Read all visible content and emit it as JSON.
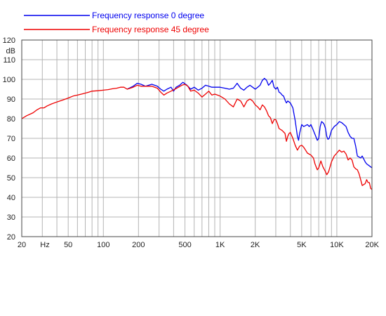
{
  "chart_data": {
    "type": "line",
    "xscale": "log",
    "xlim": [
      20,
      20000
    ],
    "ylim": [
      20,
      120
    ],
    "ylabel": "dB",
    "grid": true,
    "legend_position": "top-left",
    "x_tick_labels": [
      {
        "value": 20,
        "label": "20"
      },
      {
        "value": 50,
        "label": "50"
      },
      {
        "value": 100,
        "label": "100"
      },
      {
        "value": 200,
        "label": "200"
      },
      {
        "value": 500,
        "label": "500"
      },
      {
        "value": 1000,
        "label": "1K"
      },
      {
        "value": 2000,
        "label": "2K"
      },
      {
        "value": 5000,
        "label": "5K"
      },
      {
        "value": 10000,
        "label": "10K"
      },
      {
        "value": 20000,
        "label": "20K"
      }
    ],
    "x_unit_label": "Hz",
    "y_ticks": [
      20,
      30,
      40,
      50,
      60,
      70,
      80,
      90,
      100,
      110,
      120
    ],
    "series": [
      {
        "name": "Frequency response 0 degree",
        "color": "#0000ee",
        "points": [
          [
            160,
            95
          ],
          [
            180,
            96.5
          ],
          [
            195,
            98
          ],
          [
            210,
            97.5
          ],
          [
            230,
            96.5
          ],
          [
            260,
            97.5
          ],
          [
            290,
            96.5
          ],
          [
            310,
            95
          ],
          [
            330,
            94
          ],
          [
            350,
            95
          ],
          [
            380,
            96
          ],
          [
            400,
            94
          ],
          [
            420,
            96
          ],
          [
            450,
            97
          ],
          [
            480,
            98.5
          ],
          [
            520,
            97
          ],
          [
            560,
            95
          ],
          [
            600,
            96
          ],
          [
            650,
            94.5
          ],
          [
            700,
            95.5
          ],
          [
            750,
            97
          ],
          [
            800,
            96.5
          ],
          [
            850,
            96
          ],
          [
            900,
            96
          ],
          [
            1000,
            96
          ],
          [
            1100,
            95.5
          ],
          [
            1200,
            95
          ],
          [
            1300,
            95.5
          ],
          [
            1400,
            98
          ],
          [
            1500,
            95.5
          ],
          [
            1600,
            94.5
          ],
          [
            1700,
            96
          ],
          [
            1800,
            97
          ],
          [
            1900,
            96
          ],
          [
            2000,
            95
          ],
          [
            2100,
            96
          ],
          [
            2200,
            97
          ],
          [
            2300,
            99.5
          ],
          [
            2400,
            100.5
          ],
          [
            2500,
            99.5
          ],
          [
            2600,
            97
          ],
          [
            2700,
            98
          ],
          [
            2800,
            99.5
          ],
          [
            2900,
            96
          ],
          [
            3000,
            95
          ],
          [
            3100,
            96
          ],
          [
            3200,
            93.5
          ],
          [
            3300,
            93
          ],
          [
            3400,
            92
          ],
          [
            3500,
            91.5
          ],
          [
            3600,
            89.5
          ],
          [
            3700,
            88
          ],
          [
            3800,
            89
          ],
          [
            3900,
            88.5
          ],
          [
            4000,
            88
          ],
          [
            4200,
            85.5
          ],
          [
            4400,
            79
          ],
          [
            4600,
            71
          ],
          [
            4700,
            69
          ],
          [
            4800,
            72.5
          ],
          [
            5000,
            77
          ],
          [
            5200,
            76
          ],
          [
            5400,
            76.5
          ],
          [
            5600,
            77
          ],
          [
            5800,
            76
          ],
          [
            6000,
            77
          ],
          [
            6200,
            75
          ],
          [
            6500,
            72
          ],
          [
            6800,
            69
          ],
          [
            7000,
            70
          ],
          [
            7200,
            76
          ],
          [
            7400,
            78.5
          ],
          [
            7600,
            78
          ],
          [
            7800,
            77
          ],
          [
            8000,
            75
          ],
          [
            8200,
            71
          ],
          [
            8400,
            69.5
          ],
          [
            8600,
            70
          ],
          [
            8800,
            72
          ],
          [
            9000,
            74
          ],
          [
            9500,
            76
          ],
          [
            10000,
            77
          ],
          [
            10500,
            78.5
          ],
          [
            11000,
            78
          ],
          [
            11500,
            77
          ],
          [
            12000,
            76
          ],
          [
            12500,
            73
          ],
          [
            13000,
            71
          ],
          [
            13500,
            70
          ],
          [
            14000,
            70
          ],
          [
            14500,
            66
          ],
          [
            15000,
            61
          ],
          [
            15500,
            60.5
          ],
          [
            16000,
            60
          ],
          [
            16500,
            61
          ],
          [
            17000,
            59.5
          ],
          [
            17500,
            58
          ],
          [
            18000,
            57
          ],
          [
            19000,
            56
          ],
          [
            20000,
            55
          ]
        ]
      },
      {
        "name": "Frequency response 45 degree",
        "color": "#ee0000",
        "points": [
          [
            20,
            80
          ],
          [
            22,
            81.5
          ],
          [
            25,
            83
          ],
          [
            27,
            84.5
          ],
          [
            29,
            85.5
          ],
          [
            31,
            85.5
          ],
          [
            33,
            86.5
          ],
          [
            36,
            87.5
          ],
          [
            40,
            88.5
          ],
          [
            45,
            89.5
          ],
          [
            50,
            90.5
          ],
          [
            55,
            91.5
          ],
          [
            60,
            92
          ],
          [
            65,
            92.5
          ],
          [
            70,
            93
          ],
          [
            75,
            93.5
          ],
          [
            80,
            94
          ],
          [
            90,
            94.2
          ],
          [
            100,
            94.5
          ],
          [
            110,
            94.8
          ],
          [
            120,
            95.2
          ],
          [
            130,
            95.5
          ],
          [
            140,
            96
          ],
          [
            150,
            96
          ],
          [
            160,
            95
          ],
          [
            170,
            95.5
          ],
          [
            180,
            96
          ],
          [
            195,
            97
          ],
          [
            210,
            96.5
          ],
          [
            230,
            96.5
          ],
          [
            260,
            96.5
          ],
          [
            290,
            95.5
          ],
          [
            310,
            93.5
          ],
          [
            330,
            92
          ],
          [
            350,
            93
          ],
          [
            380,
            94
          ],
          [
            410,
            95
          ],
          [
            440,
            96
          ],
          [
            470,
            97
          ],
          [
            500,
            97.5
          ],
          [
            530,
            96.5
          ],
          [
            560,
            94
          ],
          [
            600,
            94.5
          ],
          [
            650,
            93
          ],
          [
            700,
            91
          ],
          [
            750,
            92.5
          ],
          [
            800,
            94
          ],
          [
            850,
            92
          ],
          [
            900,
            92.5
          ],
          [
            950,
            92
          ],
          [
            1000,
            91.5
          ],
          [
            1100,
            90
          ],
          [
            1200,
            87.5
          ],
          [
            1300,
            86
          ],
          [
            1400,
            90
          ],
          [
            1500,
            89
          ],
          [
            1600,
            86
          ],
          [
            1700,
            89
          ],
          [
            1800,
            90
          ],
          [
            1900,
            89
          ],
          [
            2000,
            87
          ],
          [
            2100,
            86
          ],
          [
            2200,
            84.5
          ],
          [
            2300,
            87
          ],
          [
            2400,
            86
          ],
          [
            2500,
            84
          ],
          [
            2600,
            81.5
          ],
          [
            2700,
            80.5
          ],
          [
            2800,
            77.5
          ],
          [
            2900,
            79.5
          ],
          [
            3000,
            79.5
          ],
          [
            3100,
            77.5
          ],
          [
            3200,
            75
          ],
          [
            3400,
            74
          ],
          [
            3600,
            72.5
          ],
          [
            3700,
            68.5
          ],
          [
            3800,
            71
          ],
          [
            3900,
            72.5
          ],
          [
            4000,
            73
          ],
          [
            4200,
            70
          ],
          [
            4400,
            66.5
          ],
          [
            4600,
            64
          ],
          [
            4800,
            66
          ],
          [
            5000,
            66.5
          ],
          [
            5200,
            65.5
          ],
          [
            5400,
            64
          ],
          [
            5600,
            62.5
          ],
          [
            6000,
            61.5
          ],
          [
            6300,
            60
          ],
          [
            6500,
            57
          ],
          [
            6800,
            54
          ],
          [
            7000,
            55
          ],
          [
            7300,
            58.5
          ],
          [
            7600,
            55.5
          ],
          [
            8000,
            53
          ],
          [
            8200,
            51.5
          ],
          [
            8500,
            53
          ],
          [
            9000,
            58
          ],
          [
            9500,
            61
          ],
          [
            10000,
            62.5
          ],
          [
            10500,
            64
          ],
          [
            11000,
            63
          ],
          [
            11500,
            63.5
          ],
          [
            12000,
            62
          ],
          [
            12500,
            59
          ],
          [
            13000,
            60
          ],
          [
            13500,
            59
          ],
          [
            14000,
            55.5
          ],
          [
            14500,
            54.5
          ],
          [
            15000,
            54
          ],
          [
            15500,
            52
          ],
          [
            16000,
            49
          ],
          [
            16500,
            46
          ],
          [
            17000,
            46.5
          ],
          [
            17500,
            47
          ],
          [
            18000,
            49
          ],
          [
            18500,
            47.5
          ],
          [
            19000,
            47.5
          ],
          [
            19500,
            44.5
          ],
          [
            20000,
            44
          ]
        ]
      }
    ]
  }
}
